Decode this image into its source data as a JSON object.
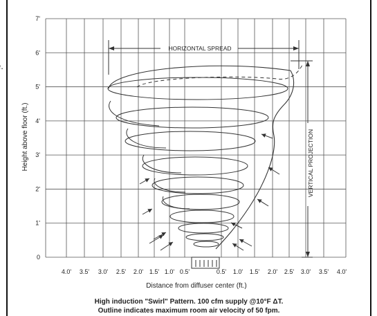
{
  "side_fragment": "e.",
  "y_axis": {
    "label": "Height above floor (ft.)",
    "ticks": [
      "0",
      "1'",
      "2'",
      "3'",
      "4'",
      "5'",
      "6'",
      "7'"
    ]
  },
  "x_axis": {
    "label": "Distance from diffuser center (ft.)",
    "left_ticks": [
      "4.0'",
      "3.5'",
      "3.0'",
      "2.5'",
      "2.0'",
      "1.5'",
      "1.0'",
      "0.5'"
    ],
    "right_ticks": [
      "0.5'",
      "1.0'",
      "1.5'",
      "2.0'",
      "2.5'",
      "3.0'",
      "3.5'",
      "4.0'"
    ]
  },
  "annotations": {
    "horizontal_spread": "HORIZONTAL SPREAD",
    "vertical_projection": "VERTICAL PROJECTION"
  },
  "caption": {
    "line1": "High induction \"Swirl\" Pattern. 100 cfm supply @10°F ΔT.",
    "line2": "Outline indicates maximum room air velocity of 50 fpm."
  },
  "colors": {
    "grid": "#555555",
    "line": "#333333",
    "background": "#ffffff"
  }
}
